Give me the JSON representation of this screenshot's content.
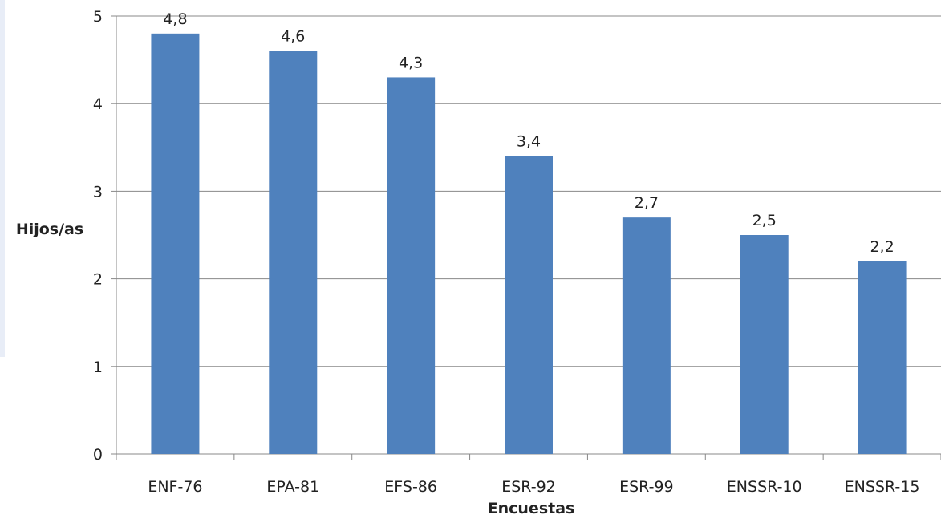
{
  "chart_data": {
    "type": "bar",
    "categories": [
      "ENF-76",
      "EPA-81",
      "EFS-86",
      "ESR-92",
      "ESR-99",
      "ENSSR-10",
      "ENSSR-15"
    ],
    "values": [
      4.8,
      4.6,
      4.3,
      3.4,
      2.7,
      2.5,
      2.2
    ],
    "data_labels": [
      "4,8",
      "4,6",
      "4,3",
      "3,4",
      "2,7",
      "2,5",
      "2,2"
    ],
    "xlabel": "Encuestas",
    "ylabel": "Hijos/as",
    "ylim": [
      0,
      5
    ],
    "yticks": [
      0,
      1,
      2,
      3,
      4,
      5
    ],
    "grid": true,
    "legend": "none",
    "colors": {
      "bar": "#4f81bd",
      "grid": "#888888",
      "axis": "#888888"
    }
  }
}
